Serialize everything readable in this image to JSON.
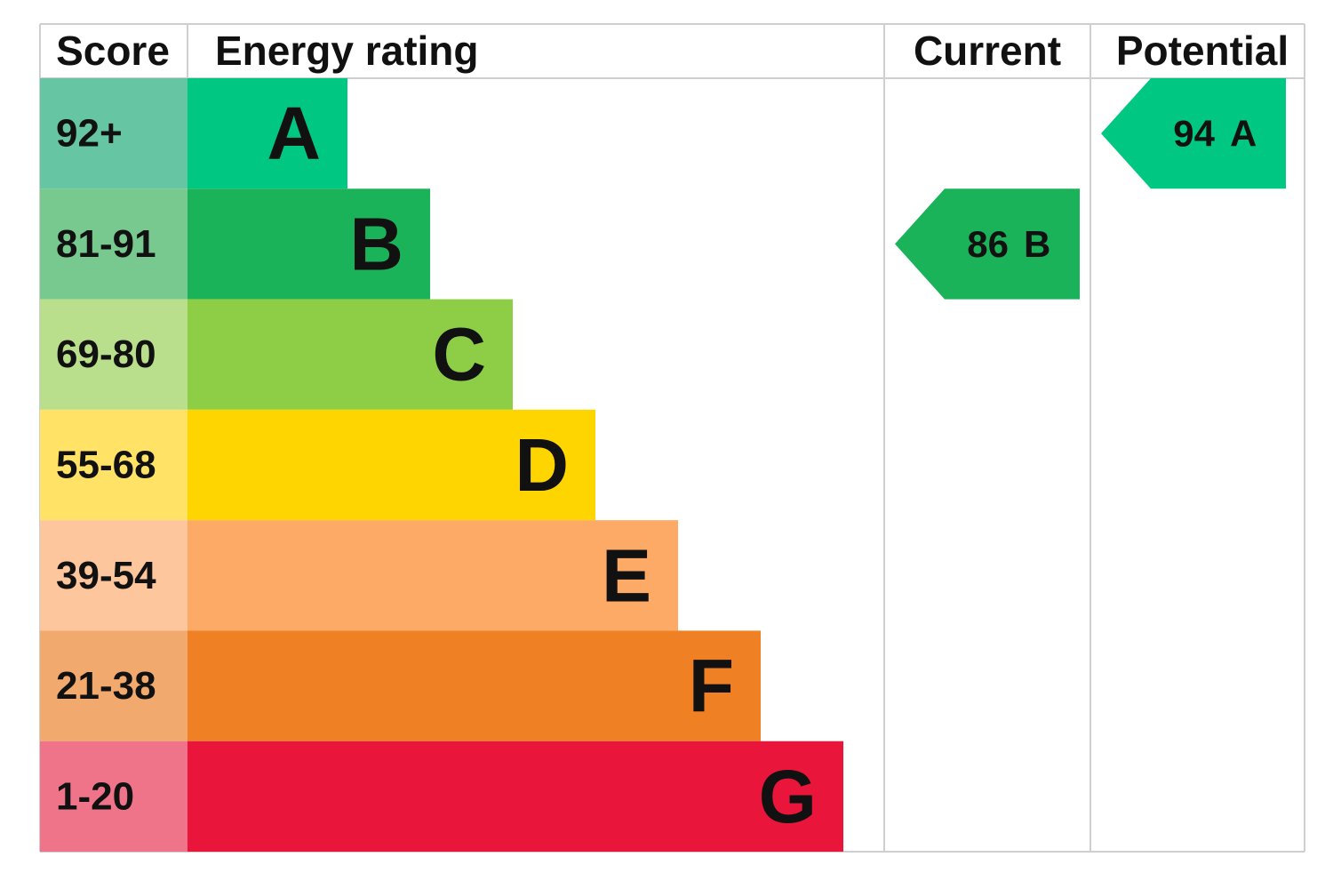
{
  "header": {
    "score": "Score",
    "rating": "Energy rating",
    "current": "Current",
    "potential": "Potential"
  },
  "bands": [
    {
      "score": "92+",
      "letter": "A",
      "color": "#00c781",
      "score_color": "#66c6a3"
    },
    {
      "score": "81-91",
      "letter": "B",
      "color": "#1bb35a",
      "score_color": "#77c98f"
    },
    {
      "score": "69-80",
      "letter": "C",
      "color": "#8dce46",
      "score_color": "#badf8c"
    },
    {
      "score": "55-68",
      "letter": "D",
      "color": "#ffd500",
      "score_color": "#ffe266"
    },
    {
      "score": "39-54",
      "letter": "E",
      "color": "#fcaa65",
      "score_color": "#fdc69d"
    },
    {
      "score": "21-38",
      "letter": "F",
      "color": "#ef8023",
      "score_color": "#f2a96e"
    },
    {
      "score": "1-20",
      "letter": "G",
      "color": "#e9153b",
      "score_color": "#f07489"
    }
  ],
  "current": {
    "value": 86,
    "letter": "B"
  },
  "potential": {
    "value": 94,
    "letter": "A"
  }
}
